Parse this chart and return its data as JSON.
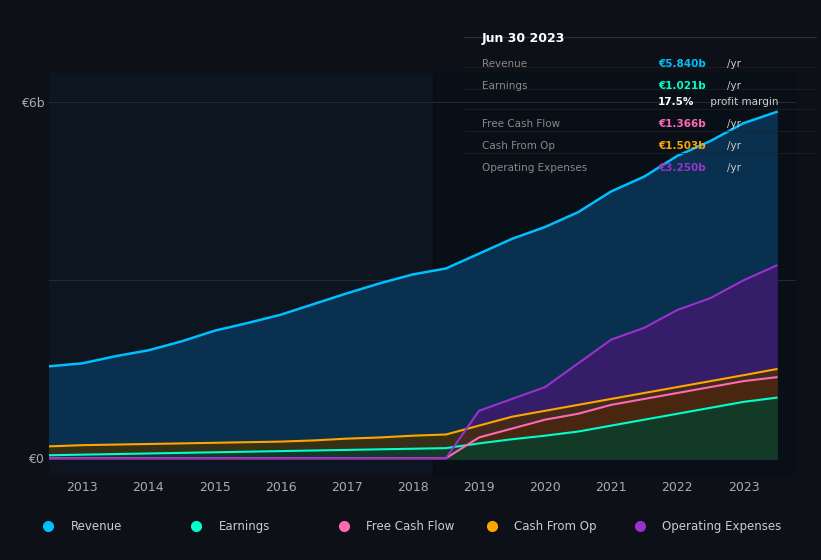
{
  "bg_color": "#0d1117",
  "chart_bg": "#0d1520",
  "grid_color": "#1e2d3d",
  "years": [
    2012.5,
    2013,
    2013.5,
    2014,
    2014.5,
    2015,
    2015.5,
    2016,
    2016.5,
    2017,
    2017.5,
    2018,
    2018.5,
    2019,
    2019.5,
    2020,
    2020.5,
    2021,
    2021.5,
    2022,
    2022.5,
    2023,
    2023.5
  ],
  "revenue": [
    1.55,
    1.6,
    1.72,
    1.82,
    1.97,
    2.15,
    2.28,
    2.42,
    2.6,
    2.78,
    2.95,
    3.1,
    3.2,
    3.45,
    3.7,
    3.9,
    4.15,
    4.5,
    4.75,
    5.1,
    5.35,
    5.65,
    5.84
  ],
  "earnings": [
    0.05,
    0.06,
    0.07,
    0.08,
    0.09,
    0.1,
    0.11,
    0.12,
    0.13,
    0.14,
    0.15,
    0.16,
    0.17,
    0.25,
    0.32,
    0.38,
    0.45,
    0.55,
    0.65,
    0.75,
    0.85,
    0.95,
    1.021
  ],
  "fcf": [
    0.0,
    0.0,
    0.0,
    0.0,
    0.0,
    0.0,
    0.0,
    0.0,
    0.0,
    0.0,
    0.0,
    0.0,
    0.0,
    0.35,
    0.5,
    0.65,
    0.75,
    0.9,
    1.0,
    1.1,
    1.2,
    1.3,
    1.366
  ],
  "cash_from_op": [
    0.2,
    0.22,
    0.23,
    0.24,
    0.25,
    0.26,
    0.27,
    0.28,
    0.3,
    0.33,
    0.35,
    0.38,
    0.4,
    0.55,
    0.7,
    0.8,
    0.9,
    1.0,
    1.1,
    1.2,
    1.3,
    1.4,
    1.503
  ],
  "op_expenses": [
    0.0,
    0.0,
    0.0,
    0.0,
    0.0,
    0.0,
    0.0,
    0.0,
    0.0,
    0.0,
    0.0,
    0.0,
    0.0,
    0.8,
    1.0,
    1.2,
    1.6,
    2.0,
    2.2,
    2.5,
    2.7,
    3.0,
    3.25
  ],
  "revenue_color": "#00bfff",
  "earnings_color": "#00ffcc",
  "fcf_color": "#ff69b4",
  "cash_color": "#ffa500",
  "opex_color": "#9932cc",
  "revenue_fill": "#0a3050",
  "earnings_fill": "#0d3d2a",
  "fcf_fill": "#4a1030",
  "cash_fill": "#4a3000",
  "opex_fill": "#3d1a6e",
  "xlim_left": 2012.5,
  "xlim_right": 2023.8,
  "ylim_top": 6.5,
  "ylim_bottom": -0.3,
  "ytick_labels": [
    "€0",
    "€6b"
  ],
  "ytick_vals": [
    0,
    6
  ],
  "y6b_label": "€6b",
  "y0_label": "€0",
  "xtick_years": [
    2013,
    2014,
    2015,
    2016,
    2017,
    2018,
    2019,
    2020,
    2021,
    2022,
    2023
  ],
  "info_box_title": "Jun 30 2023",
  "info_rows": [
    {
      "label": "Revenue",
      "value": "€5.840b",
      "unit": "/yr",
      "color": "#00bfff"
    },
    {
      "label": "Earnings",
      "value": "€1.021b",
      "unit": "/yr",
      "color": "#00ffcc"
    },
    {
      "label": "",
      "value": "17.5%",
      "unit": " profit margin",
      "color": "#ffffff"
    },
    {
      "label": "Free Cash Flow",
      "value": "€1.366b",
      "unit": "/yr",
      "color": "#ff69b4"
    },
    {
      "label": "Cash From Op",
      "value": "€1.503b",
      "unit": "/yr",
      "color": "#ffa500"
    },
    {
      "label": "Operating Expenses",
      "value": "€3.250b",
      "unit": "/yr",
      "color": "#9932cc"
    }
  ],
  "legend_items": [
    {
      "label": "Revenue",
      "color": "#00bfff"
    },
    {
      "label": "Earnings",
      "color": "#00ffcc"
    },
    {
      "label": "Free Cash Flow",
      "color": "#ff69b4"
    },
    {
      "label": "Cash From Op",
      "color": "#ffa500"
    },
    {
      "label": "Operating Expenses",
      "color": "#9932cc"
    }
  ],
  "shade_start": 2018.3,
  "shade_end": 2023.8
}
